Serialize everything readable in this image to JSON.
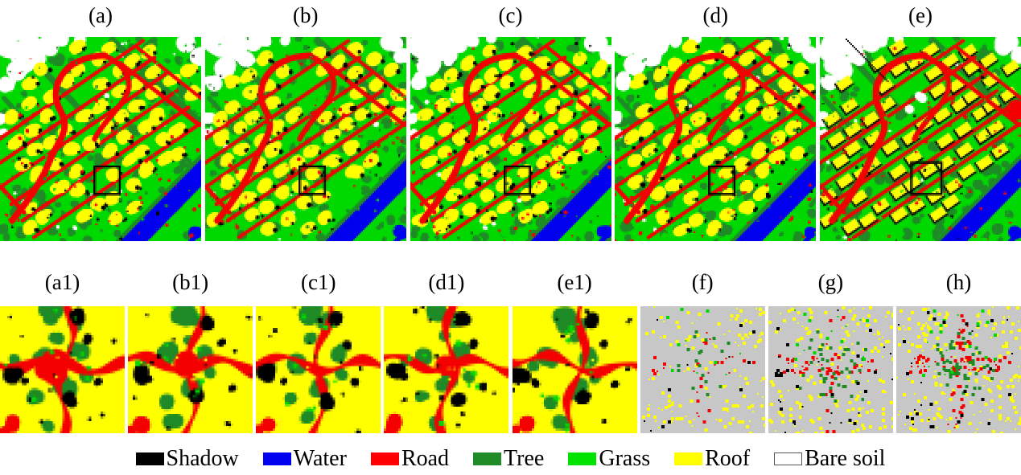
{
  "top_row": {
    "panels": [
      {
        "label": "(a)",
        "type": "classification-map"
      },
      {
        "label": "(b)",
        "type": "classification-map"
      },
      {
        "label": "(c)",
        "type": "classification-map"
      },
      {
        "label": "(d)",
        "type": "classification-map"
      },
      {
        "label": "(e)",
        "type": "reference-map"
      }
    ]
  },
  "bottom_row": {
    "panels": [
      {
        "label": "(a1)",
        "type": "zoom-crop"
      },
      {
        "label": "(b1)",
        "type": "zoom-crop"
      },
      {
        "label": "(c1)",
        "type": "zoom-crop"
      },
      {
        "label": "(d1)",
        "type": "zoom-crop"
      },
      {
        "label": "(e1)",
        "type": "zoom-crop"
      },
      {
        "label": "(f)",
        "type": "sample-dot-map"
      },
      {
        "label": "(g)",
        "type": "sample-dot-map"
      },
      {
        "label": "(h)",
        "type": "sample-dot-map"
      }
    ]
  },
  "legend": {
    "items": [
      {
        "label": "Shadow",
        "color": "#000000"
      },
      {
        "label": "Water",
        "color": "#0000ee"
      },
      {
        "label": "Road",
        "color": "#fe0000"
      },
      {
        "label": "Tree",
        "color": "#1f8b26"
      },
      {
        "label": "Grass",
        "color": "#00e300"
      },
      {
        "label": "Roof",
        "color": "#ffff00"
      },
      {
        "label": "Bare soil",
        "color": "#ffffff"
      }
    ]
  },
  "class_colors": {
    "shadow": "#000000",
    "water": "#0000ee",
    "road": "#f40000",
    "tree": "#1f8b26",
    "grass": "#00d900",
    "roof": "#ffff00",
    "bare_soil": "#ffffff",
    "sample_background": "#c7c7c7"
  }
}
